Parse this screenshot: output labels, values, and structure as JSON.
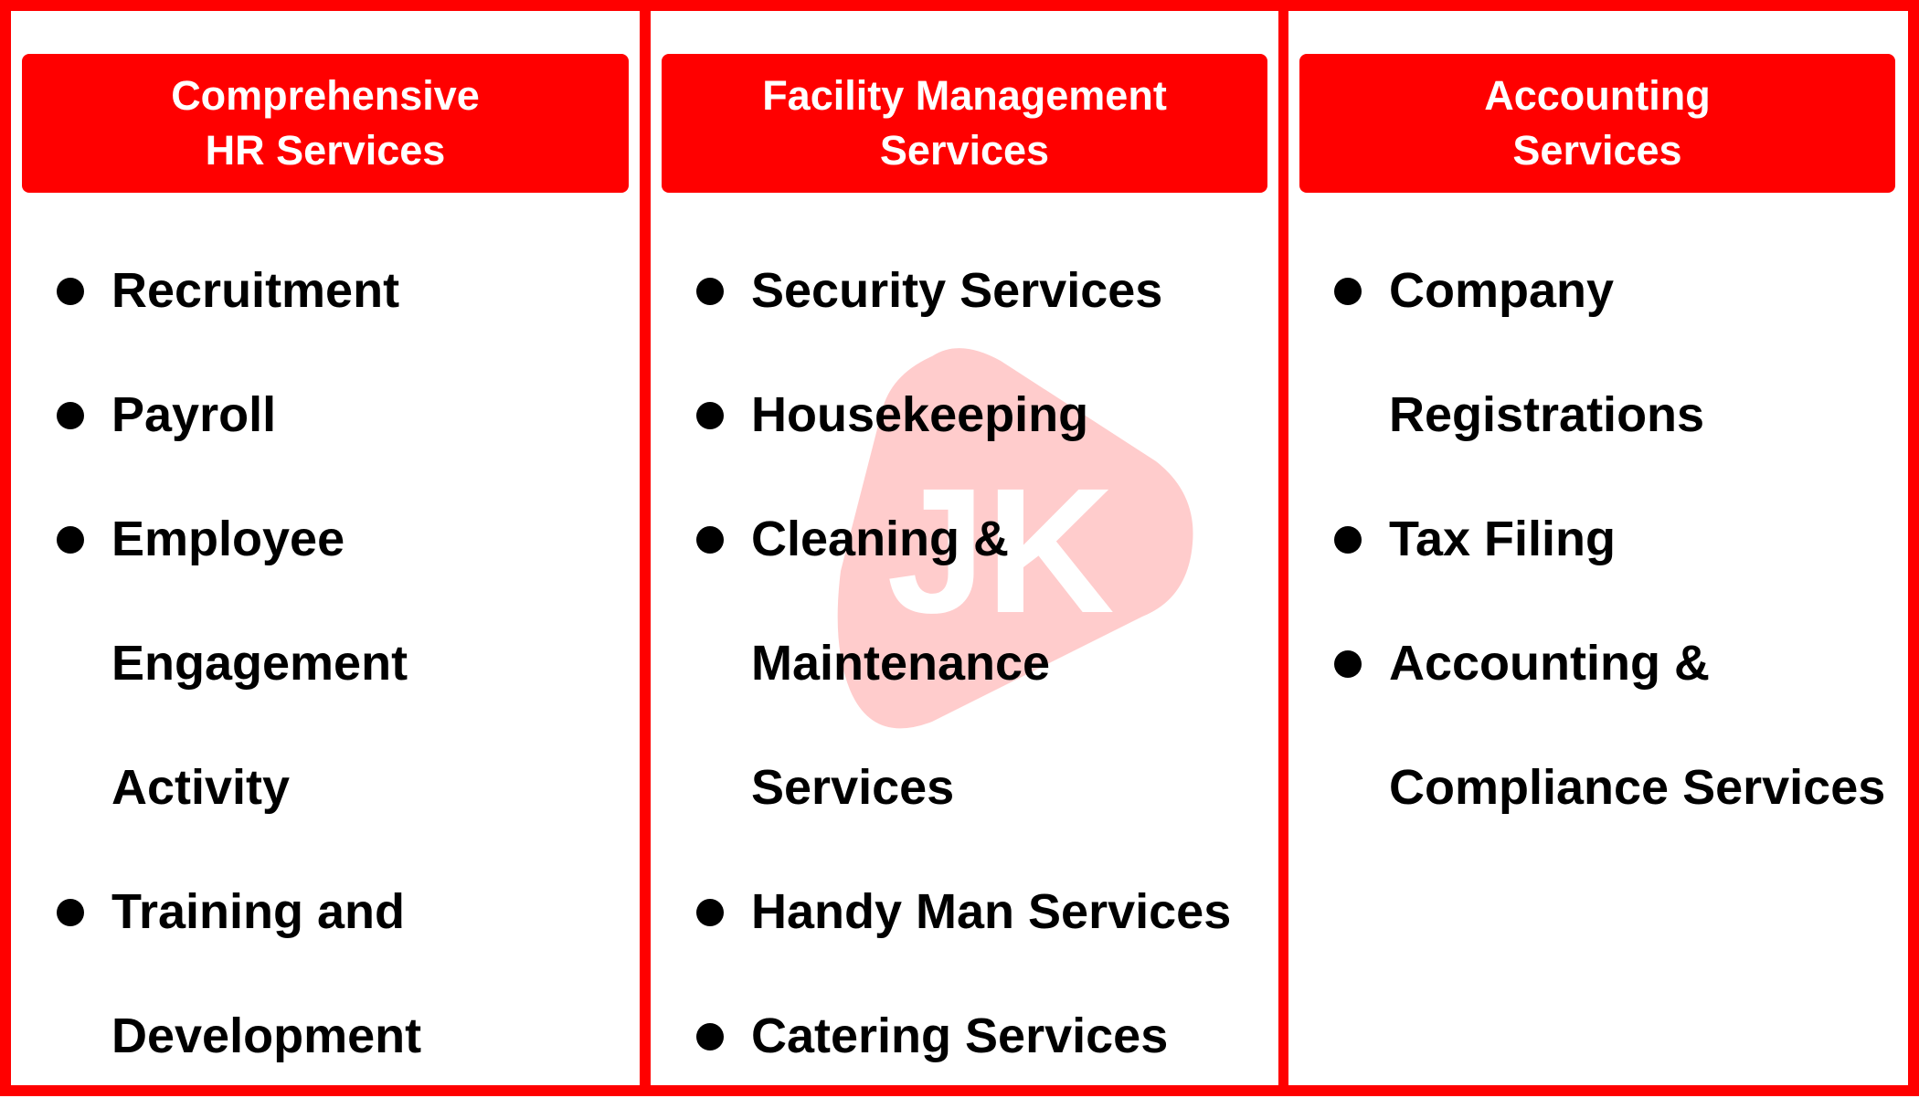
{
  "colors": {
    "accent": "#ff0000",
    "text": "#000000",
    "header_text": "#ffffff",
    "watermark": "#ffcccc"
  },
  "watermark": {
    "text": "JK"
  },
  "columns": [
    {
      "title": "Comprehensive\nHR Services",
      "items": [
        "Recruitment",
        "Payroll",
        "Employee Engagement Activity",
        "Training and Development"
      ]
    },
    {
      "title": "Facility Management\nServices",
      "items": [
        "Security Services",
        "Housekeeping",
        "Cleaning & Maintenance Services",
        "Handy Man Services",
        "Catering Services"
      ]
    },
    {
      "title": "Accounting\nServices",
      "items": [
        "Company Registrations",
        "Tax Filing",
        "Accounting & Compliance Services"
      ]
    }
  ]
}
